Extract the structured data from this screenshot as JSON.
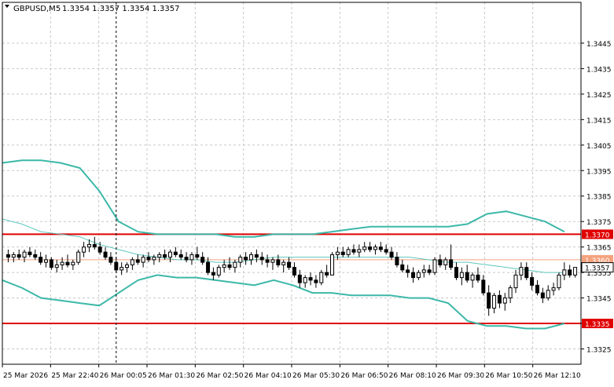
{
  "header": {
    "symbol_tf": "GBPUSD,M5",
    "ohlc": "1.3354 1.3357 1.3354 1.3357"
  },
  "colors": {
    "background": "#ffffff",
    "grid": "#c8c8c8",
    "axis": "#000000",
    "candle": "#000000",
    "bollinger": "#3cb8a8",
    "ma": "#5fc8be",
    "hline": "#e00000",
    "hline_mid": "#f4a37f",
    "price_label_text": "#ffffff"
  },
  "chart_data": {
    "type": "candlestick",
    "title": "GBPUSD,M5",
    "ylim": [
      1.3319,
      1.3461
    ],
    "y_ticks": [
      "1.3445",
      "1.3435",
      "1.3425",
      "1.3415",
      "1.3405",
      "1.3395",
      "1.3385",
      "1.3375",
      "1.3365",
      "1.3355",
      "1.3345",
      "1.3335",
      "1.3325"
    ],
    "x_ticks": [
      "25 Mar 2026",
      "25 Mar 22:40",
      "26 Mar 00:05",
      "26 Mar 01:30",
      "26 Mar 02:50",
      "26 Mar 04:10",
      "26 Mar 05:30",
      "26 Mar 06:50",
      "26 Mar 08:10",
      "26 Mar 09:30",
      "26 Mar 10:50",
      "26 Mar 12:10"
    ],
    "grid": true,
    "vertical_marker_bar": 20,
    "horizontal_lines": [
      {
        "price": 1.337,
        "label": "1.3370",
        "style": "thick"
      },
      {
        "price": 1.336,
        "label": "1.3360",
        "style": "thin"
      },
      {
        "price": 1.3335,
        "label": "1.3335",
        "style": "thick"
      }
    ],
    "current_price_label": "1.3357",
    "candles_ohlc": [
      [
        1.3362,
        1.3364,
        1.3359,
        1.3361
      ],
      [
        1.3361,
        1.3363,
        1.3359,
        1.3362
      ],
      [
        1.3362,
        1.3364,
        1.336,
        1.3361
      ],
      [
        1.3361,
        1.3364,
        1.3359,
        1.3363
      ],
      [
        1.3363,
        1.3365,
        1.3361,
        1.3362
      ],
      [
        1.3362,
        1.3364,
        1.336,
        1.3361
      ],
      [
        1.3361,
        1.3363,
        1.3358,
        1.3359
      ],
      [
        1.3359,
        1.3362,
        1.3357,
        1.336
      ],
      [
        1.336,
        1.3361,
        1.3356,
        1.3357
      ],
      [
        1.3357,
        1.336,
        1.3355,
        1.3358
      ],
      [
        1.3358,
        1.3361,
        1.3356,
        1.3359
      ],
      [
        1.3359,
        1.3362,
        1.3357,
        1.3358
      ],
      [
        1.3358,
        1.336,
        1.3356,
        1.3359
      ],
      [
        1.3359,
        1.3364,
        1.3358,
        1.3363
      ],
      [
        1.3363,
        1.3367,
        1.3361,
        1.3365
      ],
      [
        1.3365,
        1.3368,
        1.3363,
        1.3366
      ],
      [
        1.3366,
        1.3369,
        1.3364,
        1.3365
      ],
      [
        1.3365,
        1.3367,
        1.3362,
        1.3363
      ],
      [
        1.3363,
        1.3365,
        1.336,
        1.3361
      ],
      [
        1.3361,
        1.3363,
        1.3358,
        1.3359
      ],
      [
        1.3359,
        1.3361,
        1.3355,
        1.3356
      ],
      [
        1.3356,
        1.3359,
        1.3354,
        1.3357
      ],
      [
        1.3357,
        1.3359,
        1.3355,
        1.3358
      ],
      [
        1.3358,
        1.3361,
        1.3356,
        1.336
      ],
      [
        1.336,
        1.3362,
        1.3358,
        1.3359
      ],
      [
        1.3359,
        1.3362,
        1.3357,
        1.3361
      ],
      [
        1.3361,
        1.3363,
        1.3359,
        1.336
      ],
      [
        1.336,
        1.3362,
        1.3358,
        1.3361
      ],
      [
        1.3361,
        1.3363,
        1.3359,
        1.3362
      ],
      [
        1.3362,
        1.3364,
        1.336,
        1.3361
      ],
      [
        1.3361,
        1.3364,
        1.3359,
        1.3363
      ],
      [
        1.3363,
        1.3365,
        1.3361,
        1.3362
      ],
      [
        1.3362,
        1.3364,
        1.336,
        1.3361
      ],
      [
        1.3361,
        1.3363,
        1.3359,
        1.336
      ],
      [
        1.336,
        1.3363,
        1.3358,
        1.3362
      ],
      [
        1.3362,
        1.3365,
        1.336,
        1.3361
      ],
      [
        1.3361,
        1.3363,
        1.3358,
        1.3359
      ],
      [
        1.3359,
        1.3361,
        1.3354,
        1.3355
      ],
      [
        1.3355,
        1.3357,
        1.3352,
        1.3354
      ],
      [
        1.3354,
        1.3358,
        1.3353,
        1.3357
      ],
      [
        1.3357,
        1.336,
        1.3355,
        1.3358
      ],
      [
        1.3358,
        1.3361,
        1.3356,
        1.3357
      ],
      [
        1.3357,
        1.336,
        1.3355,
        1.3359
      ],
      [
        1.3359,
        1.3362,
        1.3357,
        1.3361
      ],
      [
        1.3361,
        1.3363,
        1.3358,
        1.336
      ],
      [
        1.336,
        1.3363,
        1.3358,
        1.3362
      ],
      [
        1.3362,
        1.3364,
        1.3359,
        1.3361
      ],
      [
        1.3361,
        1.3363,
        1.3358,
        1.336
      ],
      [
        1.336,
        1.3362,
        1.3357,
        1.3359
      ],
      [
        1.3359,
        1.3361,
        1.3356,
        1.336
      ],
      [
        1.336,
        1.3362,
        1.3357,
        1.3358
      ],
      [
        1.3358,
        1.336,
        1.3355,
        1.3359
      ],
      [
        1.3359,
        1.3361,
        1.3356,
        1.3357
      ],
      [
        1.3357,
        1.3359,
        1.3353,
        1.3354
      ],
      [
        1.3354,
        1.3356,
        1.3349,
        1.3351
      ],
      [
        1.3351,
        1.3354,
        1.3349,
        1.3353
      ],
      [
        1.3353,
        1.3355,
        1.335,
        1.3352
      ],
      [
        1.3352,
        1.3354,
        1.3349,
        1.3351
      ],
      [
        1.3351,
        1.3356,
        1.335,
        1.3355
      ],
      [
        1.3355,
        1.3358,
        1.3353,
        1.3354
      ],
      [
        1.3354,
        1.3363,
        1.3354,
        1.3362
      ],
      [
        1.3362,
        1.3365,
        1.336,
        1.3363
      ],
      [
        1.3363,
        1.3365,
        1.3361,
        1.3362
      ],
      [
        1.3362,
        1.3365,
        1.3361,
        1.3364
      ],
      [
        1.3364,
        1.3366,
        1.3362,
        1.3363
      ],
      [
        1.3363,
        1.3366,
        1.3361,
        1.3364
      ],
      [
        1.3364,
        1.3367,
        1.3363,
        1.3365
      ],
      [
        1.3365,
        1.3367,
        1.3363,
        1.3364
      ],
      [
        1.3364,
        1.3366,
        1.3362,
        1.3365
      ],
      [
        1.3365,
        1.3367,
        1.3363,
        1.3364
      ],
      [
        1.3364,
        1.3366,
        1.3362,
        1.3363
      ],
      [
        1.3363,
        1.3365,
        1.336,
        1.3361
      ],
      [
        1.3361,
        1.3363,
        1.3357,
        1.3358
      ],
      [
        1.3358,
        1.336,
        1.3355,
        1.3356
      ],
      [
        1.3356,
        1.3358,
        1.3353,
        1.3355
      ],
      [
        1.3355,
        1.3357,
        1.3351,
        1.3353
      ],
      [
        1.3353,
        1.3356,
        1.3352,
        1.3355
      ],
      [
        1.3355,
        1.3358,
        1.3353,
        1.3356
      ],
      [
        1.3356,
        1.3358,
        1.3354,
        1.3355
      ],
      [
        1.3355,
        1.3361,
        1.3354,
        1.336
      ],
      [
        1.336,
        1.3362,
        1.3357,
        1.3358
      ],
      [
        1.3358,
        1.3361,
        1.3356,
        1.336
      ],
      [
        1.336,
        1.3366,
        1.3356,
        1.3357
      ],
      [
        1.3357,
        1.3359,
        1.3352,
        1.3353
      ],
      [
        1.3353,
        1.3357,
        1.335,
        1.3355
      ],
      [
        1.3355,
        1.3358,
        1.3351,
        1.3352
      ],
      [
        1.3352,
        1.3355,
        1.3349,
        1.3354
      ],
      [
        1.3354,
        1.3357,
        1.3351,
        1.3352
      ],
      [
        1.3352,
        1.3354,
        1.3346,
        1.3347
      ],
      [
        1.3347,
        1.335,
        1.3338,
        1.3341
      ],
      [
        1.3341,
        1.3347,
        1.3339,
        1.3346
      ],
      [
        1.3346,
        1.3348,
        1.3341,
        1.3343
      ],
      [
        1.3343,
        1.3347,
        1.334,
        1.3345
      ],
      [
        1.3345,
        1.335,
        1.3343,
        1.3349
      ],
      [
        1.3349,
        1.3356,
        1.3347,
        1.3354
      ],
      [
        1.3354,
        1.3359,
        1.3352,
        1.3357
      ],
      [
        1.3357,
        1.3359,
        1.3352,
        1.3353
      ],
      [
        1.3353,
        1.3355,
        1.3348,
        1.335
      ],
      [
        1.335,
        1.3352,
        1.3346,
        1.3347
      ],
      [
        1.3347,
        1.3349,
        1.3343,
        1.3345
      ],
      [
        1.3345,
        1.335,
        1.3344,
        1.3348
      ],
      [
        1.3348,
        1.3351,
        1.3346,
        1.3349
      ],
      [
        1.3349,
        1.3355,
        1.3348,
        1.3354
      ],
      [
        1.3354,
        1.3359,
        1.3352,
        1.3356
      ],
      [
        1.3356,
        1.3358,
        1.3353,
        1.3354
      ],
      [
        1.3354,
        1.3357,
        1.3353,
        1.3357
      ]
    ],
    "series": [
      {
        "values_upper": [
          1.3398,
          1.3399,
          1.3399,
          1.3398,
          1.3396,
          1.3387,
          1.3375,
          1.3371,
          1.337,
          1.337,
          1.337,
          1.337,
          1.3369,
          1.3369,
          1.337,
          1.337,
          1.337,
          1.3371,
          1.3372,
          1.3373,
          1.3373,
          1.3373,
          1.3373,
          1.3373,
          1.3374,
          1.3378,
          1.3379,
          1.3377,
          1.3375,
          1.3371
        ]
      },
      {
        "values_mid": [
          1.3376,
          1.3374,
          1.3371,
          1.337,
          1.3369,
          1.3366,
          1.3364,
          1.3362,
          1.3361,
          1.336,
          1.336,
          1.3359,
          1.3359,
          1.336,
          1.3361,
          1.3361,
          1.3361,
          1.3361,
          1.3361,
          1.3361,
          1.3361,
          1.3361,
          1.336,
          1.3359,
          1.3359,
          1.3358,
          1.3357,
          1.3356,
          1.3355,
          1.3355
        ]
      },
      {
        "values_lower": [
          1.3352,
          1.3349,
          1.3345,
          1.3344,
          1.3343,
          1.3342,
          1.3347,
          1.3352,
          1.3354,
          1.3353,
          1.3353,
          1.3352,
          1.3351,
          1.335,
          1.3352,
          1.335,
          1.3347,
          1.3347,
          1.3346,
          1.3346,
          1.3346,
          1.3345,
          1.3345,
          1.3343,
          1.3336,
          1.3334,
          1.3334,
          1.3333,
          1.3333,
          1.3335
        ]
      }
    ]
  }
}
